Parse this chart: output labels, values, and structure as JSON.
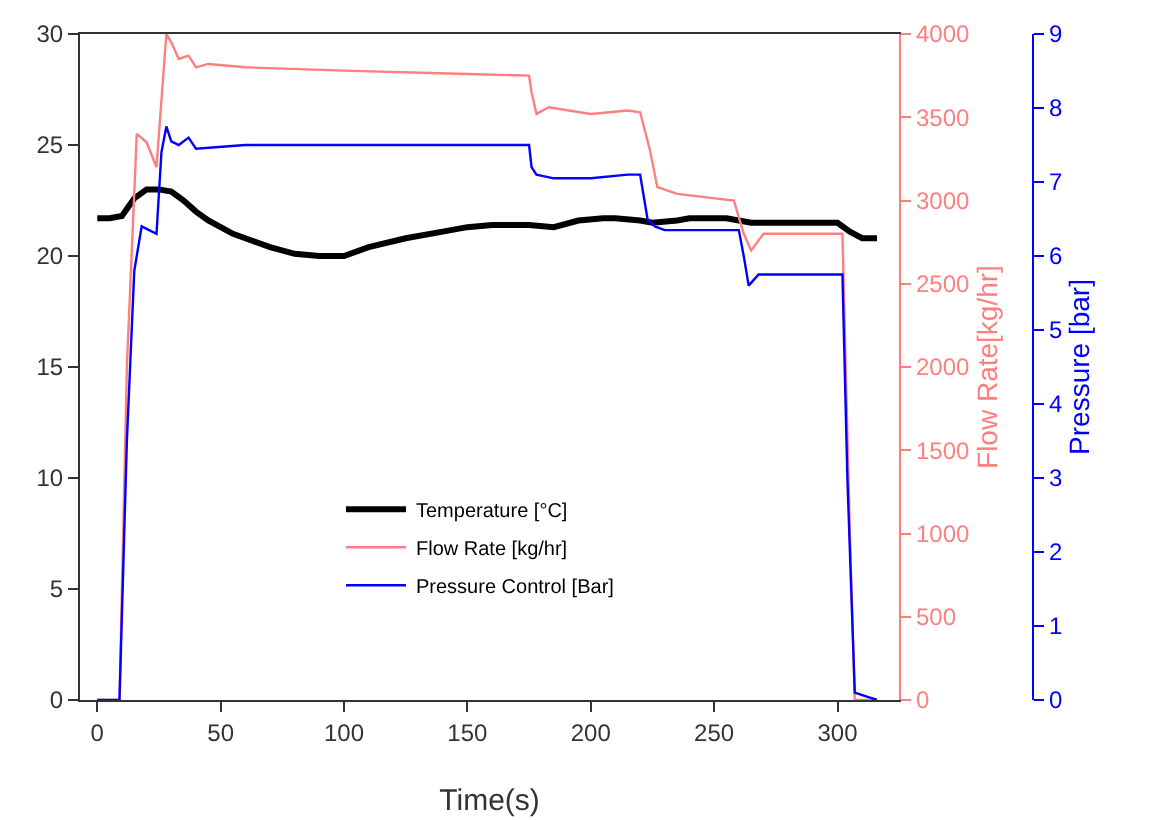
{
  "chart_data": {
    "type": "line",
    "xlabel": "Time(s)",
    "y2label": "Flow Rate[kg/hr]",
    "y3label": "Pressure [bar]",
    "xlim": [
      -7,
      325
    ],
    "xticks": [
      0,
      50,
      100,
      150,
      200,
      250,
      300
    ],
    "ylim": [
      0,
      30
    ],
    "yticks": [
      0,
      5,
      10,
      15,
      20,
      25,
      30
    ],
    "y2lim": [
      0,
      4000
    ],
    "y2ticks": [
      0,
      500,
      1000,
      1500,
      2000,
      2500,
      3000,
      3500,
      4000
    ],
    "y3lim": [
      0,
      9
    ],
    "y3ticks": [
      0,
      1,
      2,
      3,
      4,
      5,
      6,
      7,
      8,
      9
    ],
    "grid": false,
    "legend": "left",
    "marker": "none",
    "line_style": "solid",
    "series": [
      {
        "name": "Temperature [°C]",
        "color": "#000000",
        "x": [
          0,
          5,
          10,
          15,
          20,
          25,
          30,
          35,
          40,
          45,
          50,
          55,
          60,
          70,
          80,
          90,
          100,
          110,
          125,
          140,
          150,
          160,
          175,
          185,
          195,
          205,
          210,
          220,
          225,
          235,
          240,
          250,
          255,
          265,
          275,
          285,
          295,
          300,
          305,
          310,
          316
        ],
        "values": [
          21.7,
          21.7,
          21.8,
          22.6,
          23,
          23,
          22.9,
          22.5,
          22,
          21.6,
          21.3,
          21,
          20.8,
          20.4,
          20.1,
          20,
          20,
          20.4,
          20.8,
          21.1,
          21.3,
          21.4,
          21.4,
          21.3,
          21.6,
          21.7,
          21.7,
          21.6,
          21.5,
          21.6,
          21.7,
          21.7,
          21.7,
          21.5,
          21.5,
          21.5,
          21.5,
          21.5,
          21.1,
          20.8,
          20.8
        ]
      },
      {
        "name": "Flow Rate [kg/hr]",
        "color": "#ff7f7f",
        "axis": "y2",
        "x": [
          0,
          8,
          9,
          12,
          16,
          20,
          24,
          26,
          28,
          30,
          33,
          37,
          40,
          45,
          60,
          100,
          150,
          175,
          176,
          178,
          183,
          200,
          215,
          220,
          224,
          227,
          235,
          258,
          262,
          265,
          270,
          302,
          305,
          307,
          316
        ],
        "values": [
          0,
          0,
          0,
          2000,
          3400,
          3350,
          3200,
          3600,
          4000,
          3950,
          3850,
          3870,
          3800,
          3820,
          3800,
          3780,
          3760,
          3750,
          3650,
          3520,
          3560,
          3520,
          3540,
          3530,
          3300,
          3080,
          3040,
          3000,
          2800,
          2700,
          2800,
          2800,
          1000,
          0,
          0
        ]
      },
      {
        "name": "Pressure Control [Bar]",
        "color": "#0000ff",
        "axis": "y3",
        "x": [
          0,
          8,
          9,
          12,
          15,
          18,
          24,
          26,
          28,
          30,
          33,
          37,
          40,
          60,
          100,
          150,
          175,
          176,
          178,
          185,
          200,
          215,
          220,
          223,
          226,
          230,
          260,
          262,
          264,
          268,
          302,
          304,
          307,
          316
        ],
        "values": [
          0,
          0,
          0,
          3.5,
          5.8,
          6.4,
          6.3,
          7.4,
          7.75,
          7.55,
          7.5,
          7.6,
          7.45,
          7.5,
          7.5,
          7.5,
          7.5,
          7.2,
          7.1,
          7.05,
          7.05,
          7.1,
          7.1,
          6.5,
          6.4,
          6.35,
          6.35,
          6,
          5.6,
          5.75,
          5.75,
          3,
          0.1,
          0
        ]
      }
    ]
  }
}
